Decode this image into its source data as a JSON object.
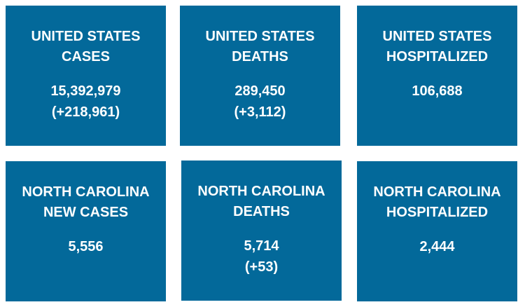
{
  "tiles": [
    {
      "title": [
        "UNITED STATES",
        "CASES"
      ],
      "value": [
        "15,392,979",
        "(+218,961)"
      ]
    },
    {
      "title": [
        "UNITED STATES",
        "DEATHS"
      ],
      "value": [
        "289,450",
        "(+3,112)"
      ]
    },
    {
      "title": [
        "UNITED STATES",
        "HOSPITALIZED"
      ],
      "value": [
        "106,688"
      ]
    },
    {
      "title": [
        "NORTH CAROLINA",
        "NEW CASES"
      ],
      "value": [
        "5,556"
      ]
    },
    {
      "title": [
        "NORTH CAROLINA",
        "DEATHS"
      ],
      "value": [
        "5,714",
        "(+53)"
      ]
    },
    {
      "title": [
        "NORTH CAROLINA",
        "HOSPITALIZED"
      ],
      "value": [
        "2,444"
      ]
    }
  ]
}
